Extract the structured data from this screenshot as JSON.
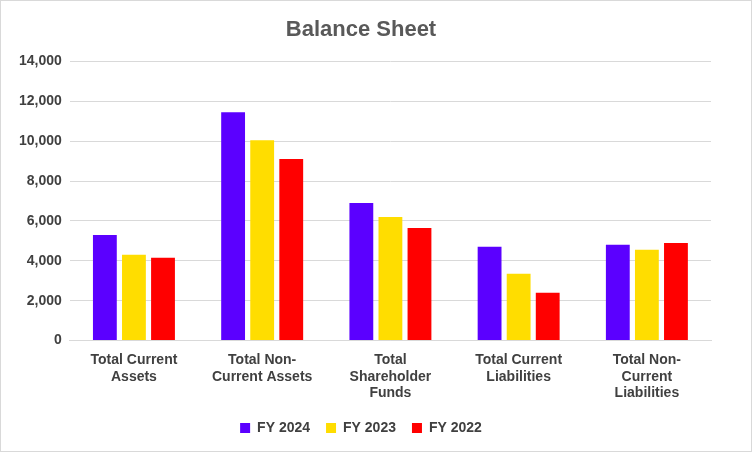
{
  "chart_data": {
    "type": "bar",
    "title": "Balance Sheet",
    "categories": [
      "Total Current Assets",
      "Total Non-Current Assets",
      "Total Shareholder Funds",
      "Total Current Liabilities",
      "Total Non-Current Liabilities"
    ],
    "series": [
      {
        "name": "FY 2024",
        "color": "#5b00ff",
        "values": [
          5300,
          11450,
          6900,
          4700,
          4800
        ]
      },
      {
        "name": "FY 2023",
        "color": "#ffdd00",
        "values": [
          4300,
          10050,
          6200,
          3350,
          4550
        ]
      },
      {
        "name": "FY 2022",
        "color": "#ff0000",
        "values": [
          4150,
          9100,
          5650,
          2400,
          4900
        ]
      }
    ],
    "ylim": [
      0,
      14000
    ],
    "yticks": [
      0,
      {
        "value": 2000,
        "label": "2,000"
      },
      {
        "value": 4000,
        "label": "4,000"
      },
      {
        "value": 6000,
        "label": "6,000"
      },
      {
        "value": 8000,
        "label": "8,000"
      },
      {
        "value": 10000,
        "label": "10,000"
      },
      {
        "value": 12000,
        "label": "12,000"
      },
      {
        "value": 14000,
        "label": "14,000"
      }
    ],
    "grid": true,
    "legend": "bottom"
  }
}
